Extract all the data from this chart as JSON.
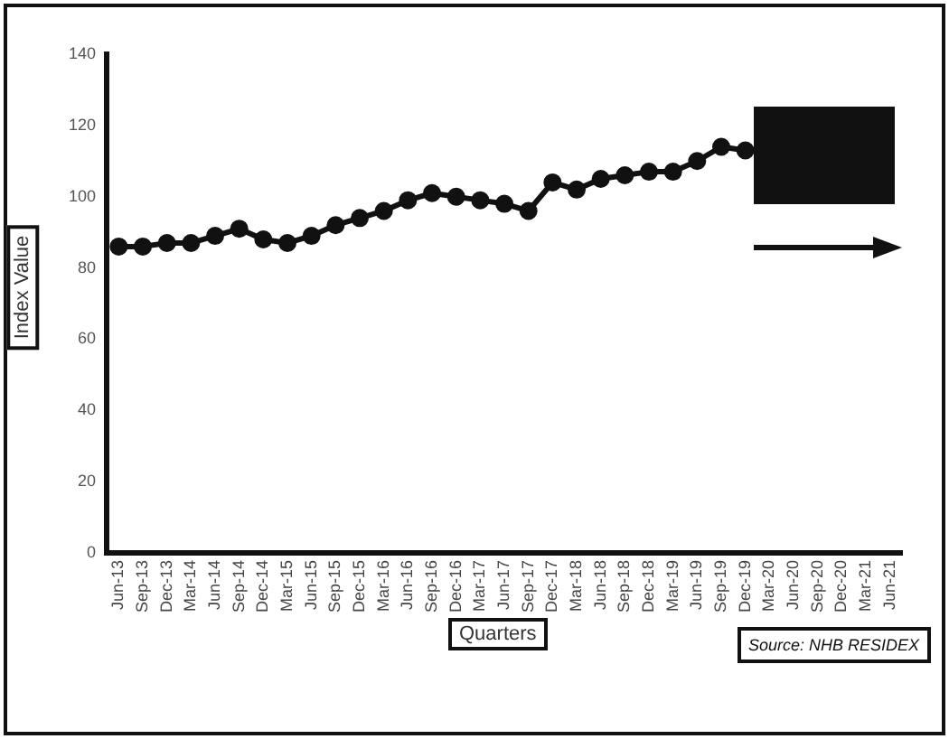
{
  "chart_data": {
    "type": "line",
    "xlabel": "Quarters",
    "ylabel": "Index Value",
    "categories": [
      "Jun-13",
      "Sep-13",
      "Dec-13",
      "Mar-14",
      "Jun-14",
      "Sep-14",
      "Dec-14",
      "Mar-15",
      "Jun-15",
      "Sep-15",
      "Dec-15",
      "Mar-16",
      "Jun-16",
      "Sep-16",
      "Dec-16",
      "Mar-17",
      "Jun-17",
      "Sep-17",
      "Dec-17",
      "Mar-18",
      "Jun-18",
      "Sep-18",
      "Dec-18",
      "Mar-19",
      "Jun-19",
      "Sep-19",
      "Dec-19",
      "Mar-20",
      "Jun-20",
      "Sep-20",
      "Dec-20",
      "Mar-21",
      "Jun-21"
    ],
    "series": [
      {
        "color": "#111111",
        "values": [
          86,
          86,
          87,
          87,
          89,
          91,
          88,
          87,
          89,
          92,
          94,
          96,
          99,
          101,
          100,
          99,
          98,
          96,
          104,
          102,
          105,
          106,
          107,
          107,
          110,
          114,
          113,
          null,
          null,
          null,
          null,
          null,
          null
        ]
      }
    ],
    "ylim": [
      0,
      140
    ],
    "yticks": [
      0,
      20,
      40,
      60,
      80,
      100,
      120,
      140
    ],
    "grid": false,
    "legend": false,
    "marker": "circle",
    "line_style": "solid",
    "annotations": [
      "Source: NHB RESIDEX"
    ]
  }
}
